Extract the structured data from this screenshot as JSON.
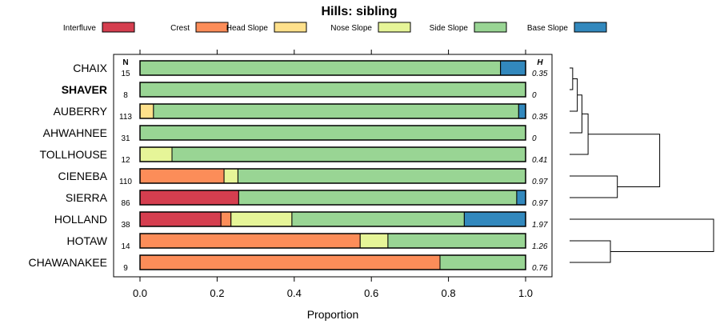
{
  "chart_data": {
    "type": "bar",
    "orientation": "horizontal",
    "stacked": true,
    "title": "Hills: sibling",
    "xlabel": "Proportion",
    "xlim": [
      0,
      1
    ],
    "xticks": [
      "0.0",
      "0.2",
      "0.4",
      "0.6",
      "0.8",
      "1.0"
    ],
    "n_header": "N",
    "h_header": "H",
    "legend_position": "top",
    "components": [
      {
        "name": "Interfluve",
        "color": "#d53e4f"
      },
      {
        "name": "Crest",
        "color": "#fc8d59"
      },
      {
        "name": "Head Slope",
        "color": "#fee08b"
      },
      {
        "name": "Nose Slope",
        "color": "#e6f598"
      },
      {
        "name": "Side Slope",
        "color": "#99d594"
      },
      {
        "name": "Base Slope",
        "color": "#3288bd"
      }
    ],
    "rows": [
      {
        "label": "CHAIX",
        "bold": false,
        "n": "15",
        "h": "0.35",
        "values": [
          0,
          0,
          0,
          0,
          0.935,
          0.065
        ]
      },
      {
        "label": "SHAVER",
        "bold": true,
        "n": "8",
        "h": "0",
        "values": [
          0,
          0,
          0,
          0,
          1.0,
          0
        ]
      },
      {
        "label": "AUBERRY",
        "bold": false,
        "n": "113",
        "h": "0.35",
        "values": [
          0,
          0,
          0.035,
          0,
          0.947,
          0.018
        ]
      },
      {
        "label": "AHWAHNEE",
        "bold": false,
        "n": "31",
        "h": "0",
        "values": [
          0,
          0,
          0,
          0,
          1.0,
          0
        ]
      },
      {
        "label": "TOLLHOUSE",
        "bold": false,
        "n": "12",
        "h": "0.41",
        "values": [
          0,
          0,
          0,
          0.083,
          0.917,
          0
        ]
      },
      {
        "label": "CIENEBA",
        "bold": false,
        "n": "110",
        "h": "0.97",
        "values": [
          0,
          0.218,
          0,
          0.036,
          0.746,
          0
        ]
      },
      {
        "label": "SIERRA",
        "bold": false,
        "n": "86",
        "h": "0.97",
        "values": [
          0.256,
          0,
          0,
          0,
          0.721,
          0.023
        ]
      },
      {
        "label": "HOLLAND",
        "bold": false,
        "n": "38",
        "h": "1.97",
        "values": [
          0.21,
          0.026,
          0,
          0.158,
          0.447,
          0.159
        ]
      },
      {
        "label": "HOTAW",
        "bold": false,
        "n": "14",
        "h": "1.26",
        "values": [
          0,
          0.571,
          0,
          0.072,
          0.357,
          0
        ]
      },
      {
        "label": "CHAWANAKEE",
        "bold": false,
        "n": "9",
        "h": "0.76",
        "values": [
          0,
          0.778,
          0,
          0,
          0.222,
          0
        ]
      }
    ],
    "dendrogram": {
      "merges": [
        {
          "a": 0,
          "b": 1,
          "height": 0.04
        },
        {
          "a": 10,
          "b": 2,
          "height": 0.1
        },
        {
          "a": 11,
          "b": 3,
          "height": 0.16
        },
        {
          "a": 12,
          "b": 4,
          "height": 0.24
        },
        {
          "a": 5,
          "b": 6,
          "height": 0.62
        },
        {
          "a": 8,
          "b": 9,
          "height": 0.53
        },
        {
          "a": 13,
          "b": 14,
          "height": 1.17
        },
        {
          "a": 7,
          "b": 15,
          "height": 1.87
        }
      ],
      "max_height": 1.87
    }
  }
}
